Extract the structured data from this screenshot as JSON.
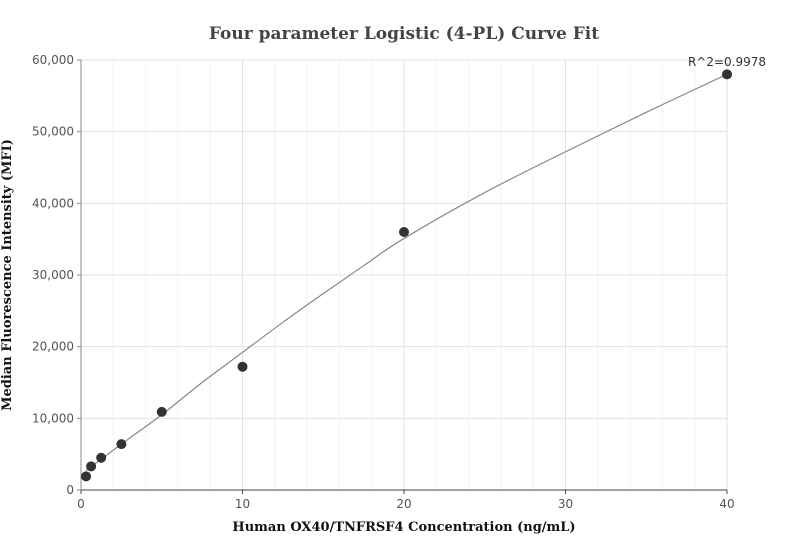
{
  "chart_data": {
    "type": "scatter",
    "title": "Four parameter Logistic (4-PL) Curve Fit",
    "xlabel": "Human OX40/TNFRSF4 Concentration (ng/mL)",
    "ylabel": "Median Fluorescence Intensity (MFI)",
    "xlim": [
      0,
      40
    ],
    "ylim": [
      0,
      60000
    ],
    "x_ticks": [
      "0",
      "10",
      "20",
      "30",
      "40"
    ],
    "y_ticks": [
      "0",
      "10,000",
      "20,000",
      "30,000",
      "40,000",
      "50,000",
      "60,000"
    ],
    "grid": true,
    "annotation": "R^2=0.9978",
    "series": [
      {
        "kind": "points",
        "color": "#333333",
        "x": [
          0.313,
          0.625,
          1.25,
          2.5,
          5,
          10,
          20,
          40
        ],
        "y": [
          1900,
          3300,
          4500,
          6400,
          10900,
          17200,
          36000,
          58000
        ]
      },
      {
        "kind": "fit-curve",
        "color": "#888888",
        "x": [
          0.313,
          2.5,
          5,
          7.5,
          10,
          12.5,
          15,
          17.5,
          20,
          25,
          30,
          35,
          40
        ],
        "y": [
          2700,
          6400,
          10500,
          15000,
          19200,
          23400,
          27400,
          31300,
          35100,
          41500,
          47200,
          52700,
          58000
        ]
      }
    ]
  }
}
